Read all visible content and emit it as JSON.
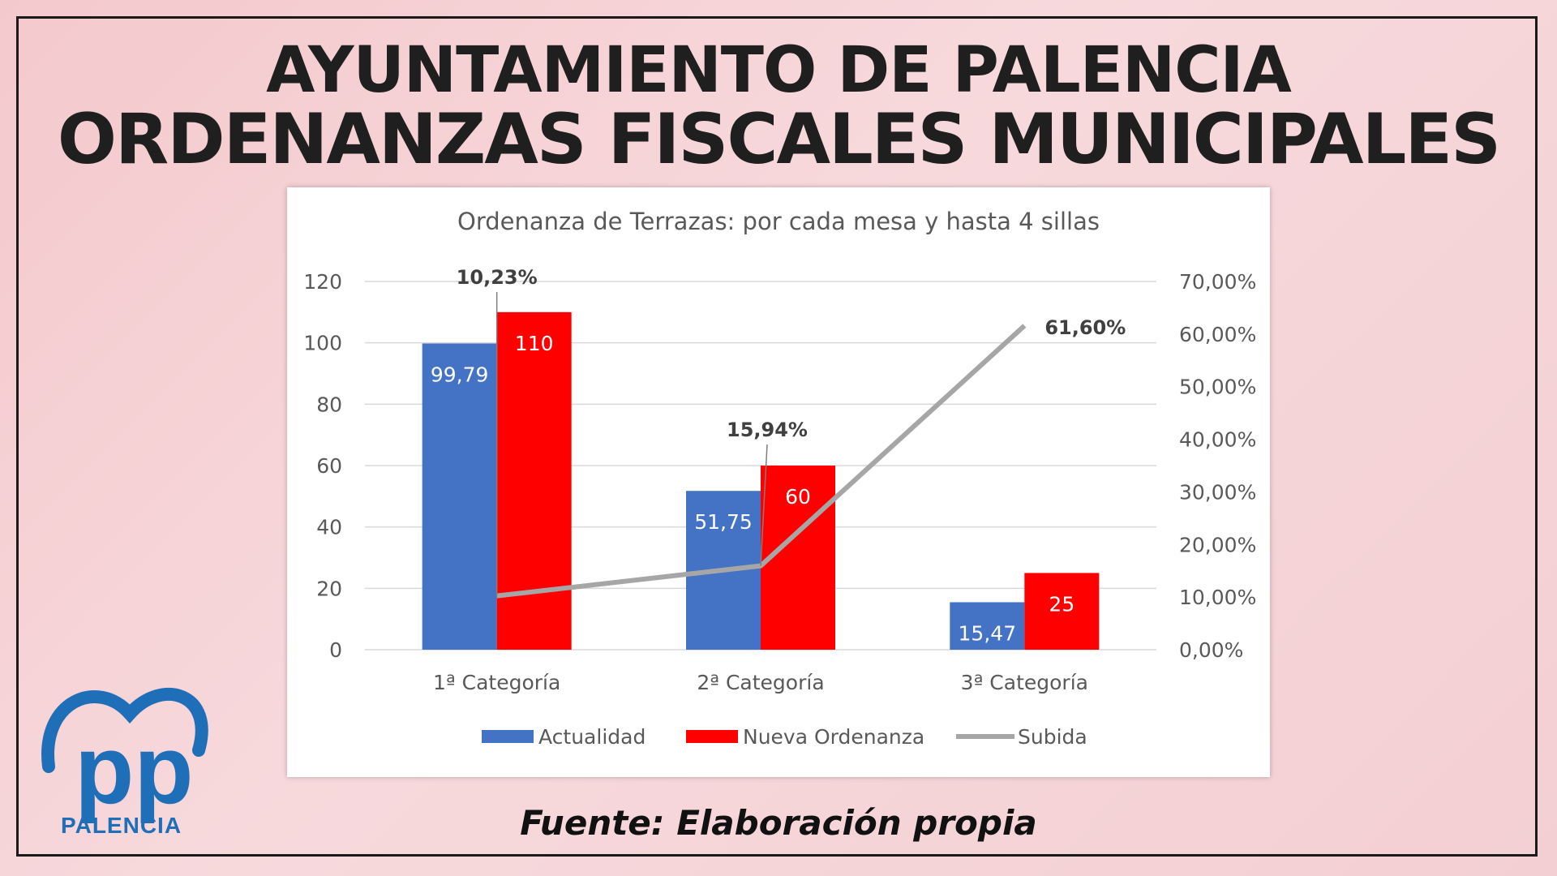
{
  "header": {
    "line1": "AYUNTAMIENTO DE PALENCIA",
    "line2": "ORDENANZAS FISCALES MUNICIPALES"
  },
  "footer": {
    "source": "Fuente: Elaboración propia"
  },
  "logo": {
    "text": "PALENCIA",
    "mark": "pp-logo-mark",
    "color": "#1F6FB8"
  },
  "colors": {
    "actualidad": "#4472C4",
    "nueva": "#FF0000",
    "subida": "#A6A6A6"
  },
  "chart_data": {
    "type": "bar",
    "title": "Ordenanza de Terrazas: por cada mesa y hasta 4 sillas",
    "categories": [
      "1ª Categoría",
      "2ª Categoría",
      "3ª Categoría"
    ],
    "series": [
      {
        "name": "Actualidad",
        "values": [
          99.79,
          51.75,
          15.47
        ],
        "labels": [
          "99,79",
          "51,75",
          "15,47"
        ]
      },
      {
        "name": "Nueva Ordenanza",
        "values": [
          110,
          60,
          25
        ],
        "labels": [
          "110",
          "60",
          "25"
        ]
      }
    ],
    "line_series": {
      "name": "Subida",
      "type": "line",
      "axis": "secondary",
      "values": [
        0.1023,
        0.1594,
        0.616
      ],
      "labels": [
        "10,23%",
        "15,94%",
        "61,60%"
      ]
    },
    "ylim": [
      0,
      120
    ],
    "y_ticks": [
      "0",
      "20",
      "40",
      "60",
      "80",
      "100",
      "120"
    ],
    "y2lim": [
      0,
      0.7
    ],
    "y2_ticks": [
      "0,00%",
      "10,00%",
      "20,00%",
      "30,00%",
      "40,00%",
      "50,00%",
      "60,00%",
      "70,00%"
    ],
    "grid": true,
    "legend": "bottom"
  }
}
